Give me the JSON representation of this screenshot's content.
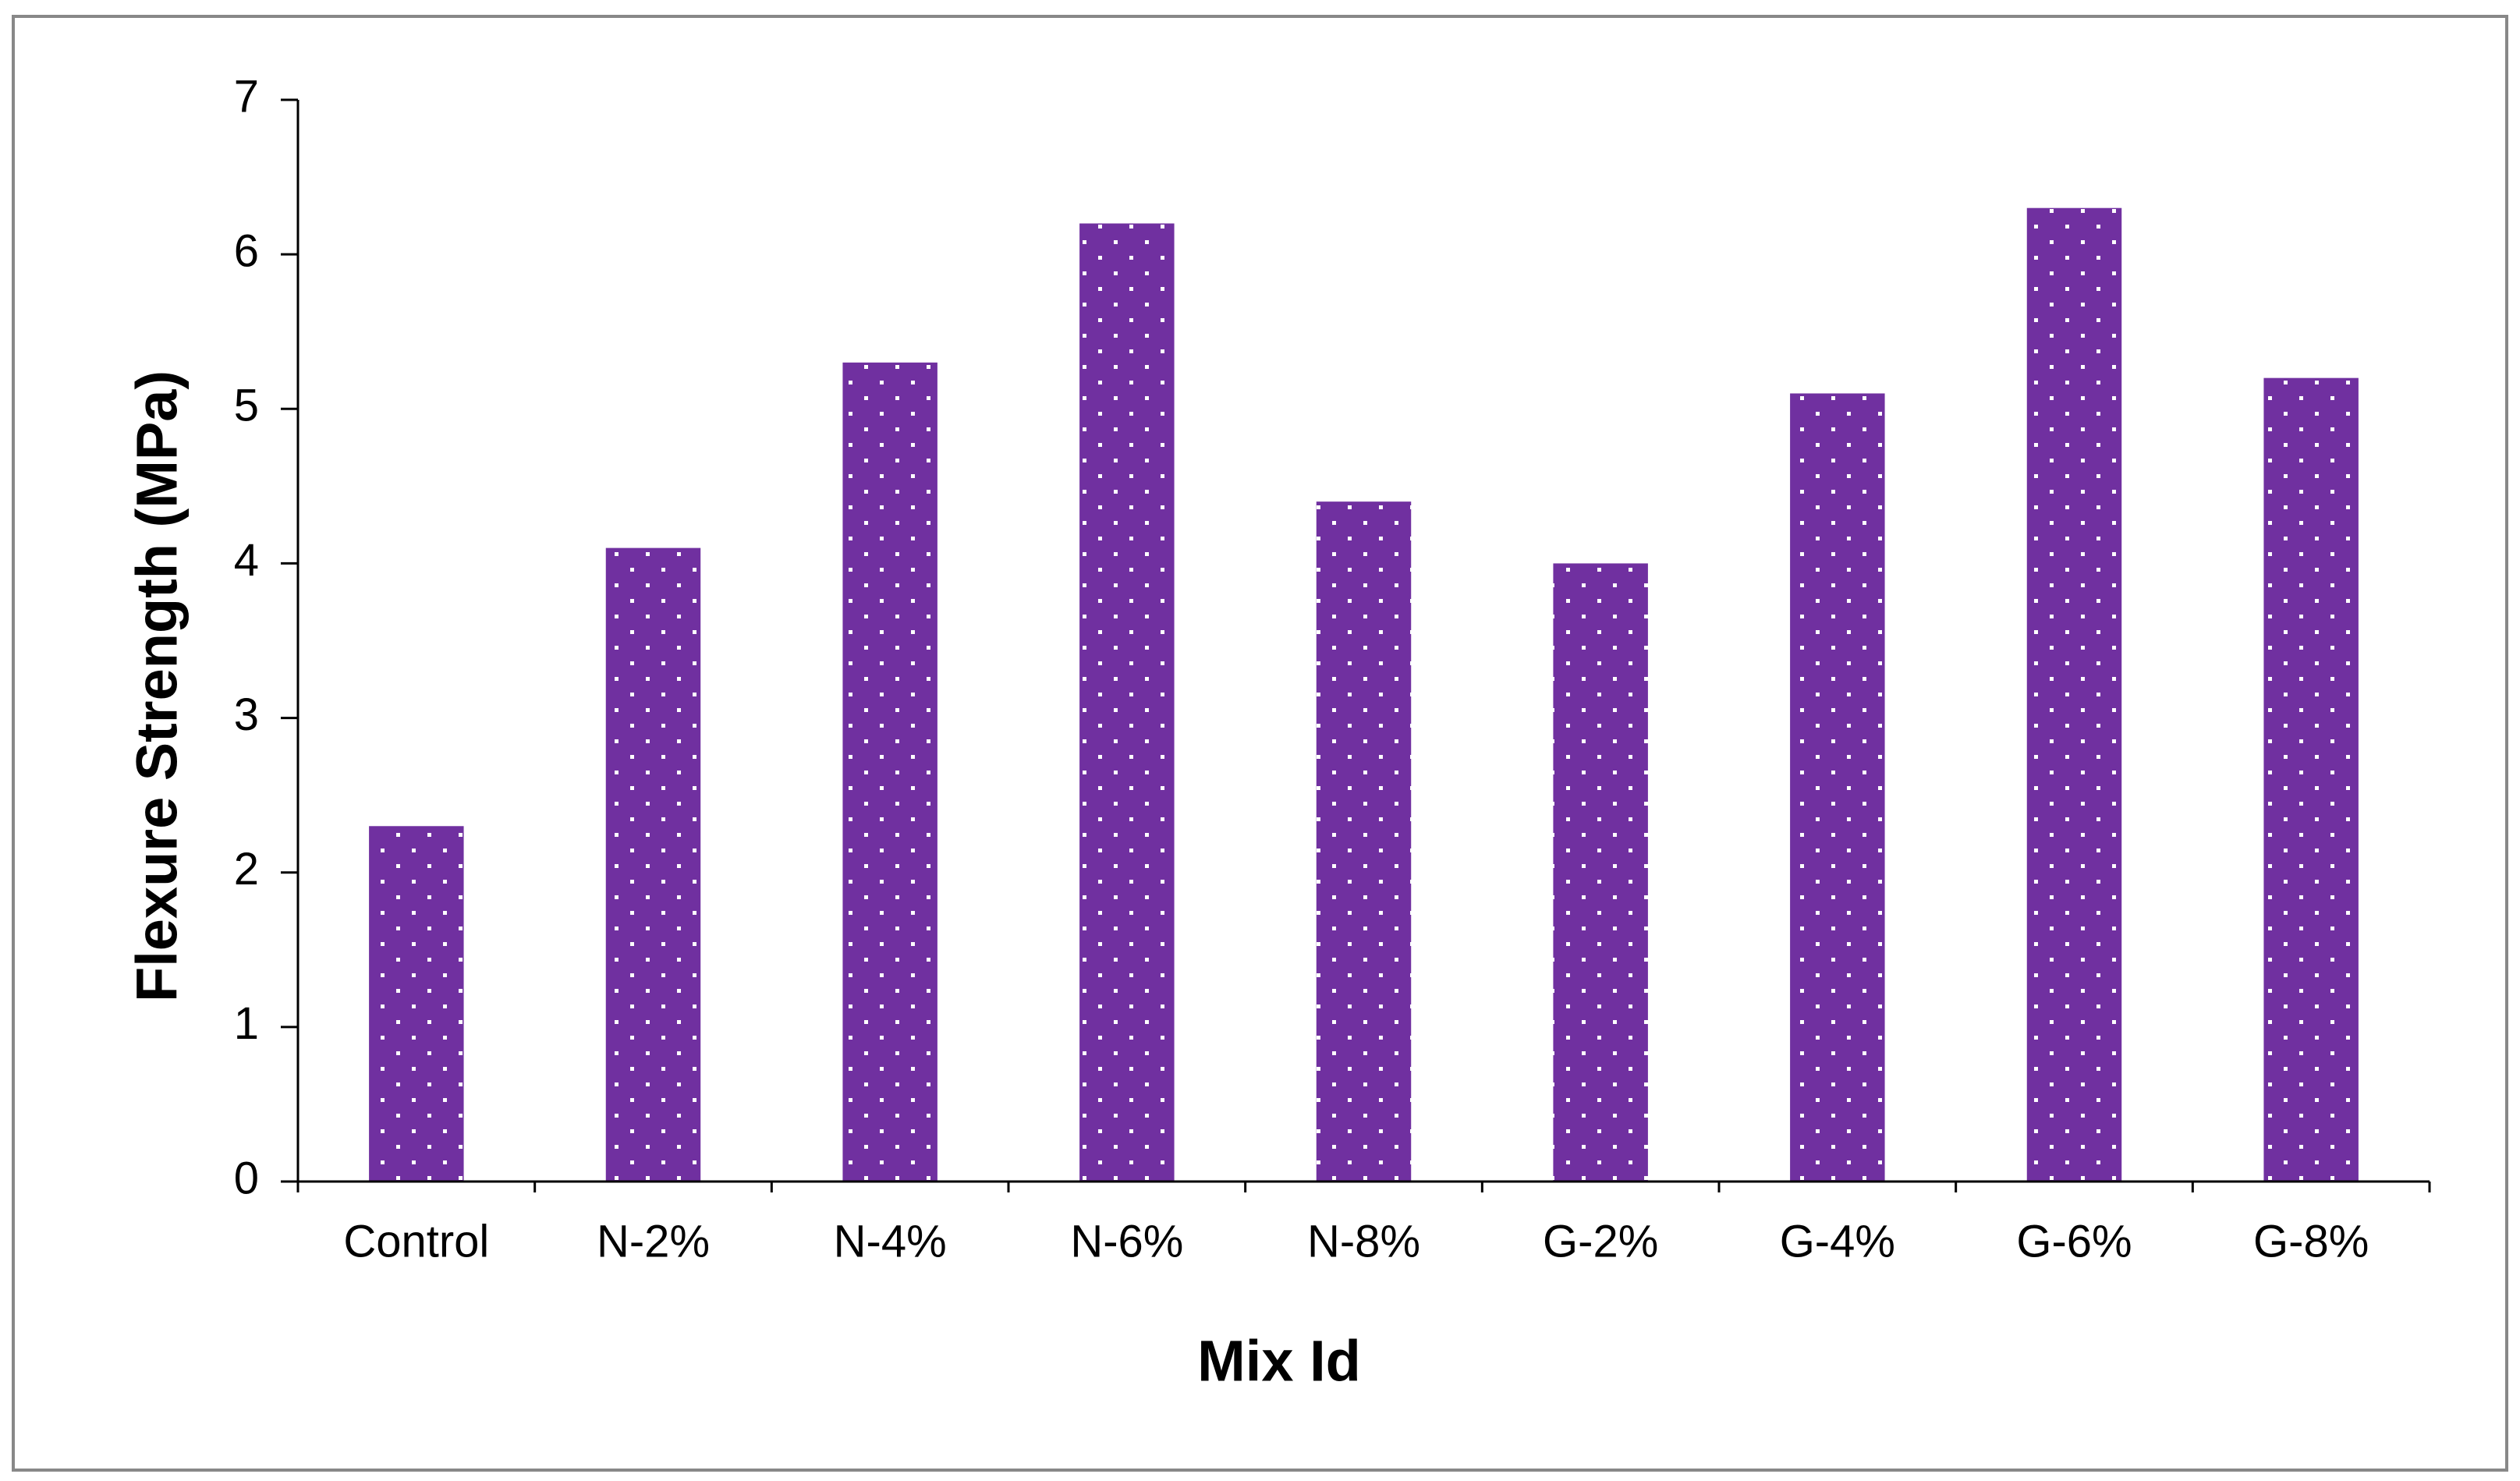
{
  "chart_data": {
    "type": "bar",
    "x_label": "Mix Id",
    "y_label": "Flexure Strength (MPa)",
    "categories": [
      "Control",
      "N-2%",
      "N-4%",
      "N-6%",
      "N-8%",
      "G-2%",
      "G-4%",
      "G-6%",
      "G-8%"
    ],
    "values": [
      2.3,
      4.1,
      5.3,
      6.2,
      4.4,
      4.0,
      5.1,
      6.3,
      5.2
    ],
    "color": "#7030a0",
    "ylim": [
      0,
      7
    ],
    "yticks": [
      0,
      1,
      2,
      3,
      4,
      5,
      6,
      7
    ],
    "grid": false
  }
}
